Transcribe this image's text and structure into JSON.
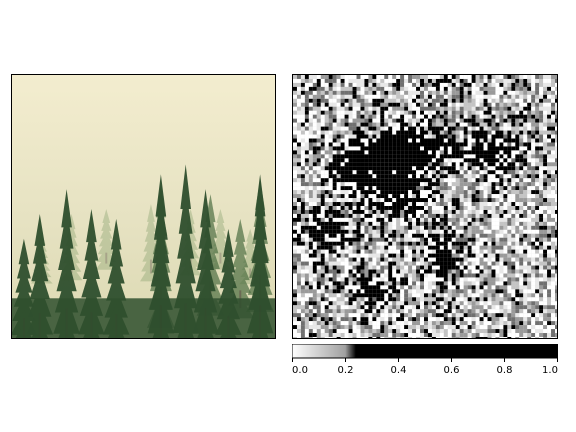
{
  "chart_data": [
    {
      "type": "image",
      "subject": "misty conifer forest photograph",
      "colors": {
        "fog": "#f3edcf",
        "haze": "#dcd9b2",
        "tree_dark": "#2f4f2e",
        "tree_mid": "#4e6f43",
        "tree_light": "#7f9b66"
      }
    },
    {
      "type": "heatmap",
      "colormap": "greys-thresholded",
      "colorbar": {
        "ticks": [
          "0.0",
          "0.2",
          "0.4",
          "0.6",
          "0.8",
          "1.0"
        ],
        "range": [
          0,
          1
        ],
        "stops": [
          {
            "value": 0.0,
            "color": "#ffffff"
          },
          {
            "value": 0.2,
            "color": "#a0a0a0"
          },
          {
            "value": 0.24,
            "color": "#000000"
          },
          {
            "value": 1.0,
            "color": "#000000"
          }
        ]
      }
    }
  ]
}
